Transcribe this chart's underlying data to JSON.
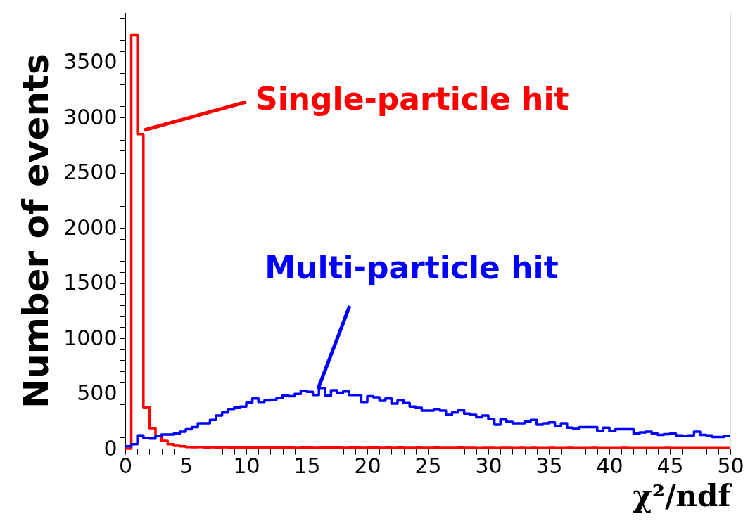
{
  "chart_data": {
    "type": "histogram",
    "bins": [
      0,
      0.5,
      1,
      1.5,
      2,
      2.5,
      3,
      3.5,
      4,
      4.5,
      5,
      5.5,
      6,
      6.5,
      7,
      7.5,
      8,
      8.5,
      9,
      9.5,
      10,
      10.5,
      11,
      11.5,
      12,
      12.5,
      13,
      13.5,
      14,
      14.5,
      15,
      15.5,
      16,
      16.5,
      17,
      17.5,
      18,
      18.5,
      19,
      19.5,
      20,
      20.5,
      21,
      21.5,
      22,
      22.5,
      23,
      23.5,
      24,
      24.5,
      25,
      25.5,
      26,
      26.5,
      27,
      27.5,
      28,
      28.5,
      29,
      29.5,
      30,
      30.5,
      31,
      31.5,
      32,
      32.5,
      33,
      33.5,
      34,
      34.5,
      35,
      35.5,
      36,
      36.5,
      37,
      37.5,
      38,
      38.5,
      39,
      39.5,
      40,
      40.5,
      41,
      41.5,
      42,
      42.5,
      43,
      43.5,
      44,
      44.5,
      45,
      45.5,
      46,
      46.5,
      47,
      47.5,
      48,
      48.5,
      49,
      49.5,
      50
    ],
    "series": [
      {
        "name": "Single-particle hit",
        "color": "#ff0000",
        "values": [
          0,
          3750,
          2850,
          375,
          185,
          115,
          70,
          40,
          25,
          20,
          15,
          12,
          15,
          10,
          12,
          10,
          12,
          10,
          8,
          10,
          10,
          8,
          10,
          8,
          8,
          10,
          8,
          8,
          6,
          8,
          8,
          6,
          8,
          8,
          10,
          8,
          6,
          8,
          8,
          6,
          8,
          8,
          6,
          8,
          6,
          8,
          6,
          6,
          8,
          6,
          6,
          8,
          6,
          6,
          6,
          8,
          6,
          6,
          5,
          6,
          6,
          5,
          6,
          6,
          5,
          6,
          5,
          6,
          5,
          5,
          6,
          5,
          5,
          6,
          5,
          5,
          5,
          6,
          5,
          5,
          5,
          5,
          6,
          5,
          5,
          5,
          5,
          5,
          5,
          6,
          5,
          5,
          5,
          5,
          5,
          5,
          5,
          5,
          5,
          5
        ]
      },
      {
        "name": "Multi-particle hit",
        "color": "#0000ff",
        "values": [
          20,
          40,
          120,
          95,
          90,
          115,
          128,
          128,
          135,
          153,
          175,
          195,
          230,
          230,
          260,
          300,
          327,
          358,
          373,
          380,
          416,
          454,
          422,
          437,
          443,
          458,
          481,
          475,
          496,
          524,
          514,
          486,
          549,
          479,
          528,
          507,
          518,
          486,
          486,
          422,
          475,
          465,
          433,
          454,
          408,
          437,
          412,
          380,
          369,
          344,
          344,
          358,
          344,
          306,
          327,
          348,
          317,
          306,
          284,
          300,
          267,
          217,
          263,
          242,
          230,
          230,
          246,
          260,
          217,
          229,
          238,
          204,
          229,
          189,
          178,
          195,
          195,
          195,
          161,
          189,
          157,
          175,
          175,
          175,
          135,
          146,
          153,
          135,
          125,
          131,
          135,
          120,
          115,
          120,
          153,
          125,
          120,
          105,
          105,
          115
        ]
      }
    ],
    "xlabel": "χ²/ndf",
    "ylabel": "Number of events",
    "xlim": [
      0,
      50
    ],
    "ylim": [
      0,
      3950
    ],
    "xticks": [
      0,
      {
        "value": 1,
        "label": null
      },
      {
        "value": 2,
        "label": null
      },
      {
        "value": 3,
        "label": null
      },
      {
        "value": 4,
        "label": null
      },
      5,
      {
        "value": 6,
        "label": null
      },
      {
        "value": 7,
        "label": null
      },
      {
        "value": 8,
        "label": null
      },
      {
        "value": 9,
        "label": null
      },
      10,
      {
        "value": 11,
        "label": null
      },
      {
        "value": 12,
        "label": null
      },
      {
        "value": 13,
        "label": null
      },
      {
        "value": 14,
        "label": null
      },
      15,
      {
        "value": 16,
        "label": null
      },
      {
        "value": 17,
        "label": null
      },
      {
        "value": 18,
        "label": null
      },
      {
        "value": 19,
        "label": null
      },
      20,
      {
        "value": 21,
        "label": null
      },
      {
        "value": 22,
        "label": null
      },
      {
        "value": 23,
        "label": null
      },
      {
        "value": 24,
        "label": null
      },
      25,
      {
        "value": 26,
        "label": null
      },
      {
        "value": 27,
        "label": null
      },
      {
        "value": 28,
        "label": null
      },
      {
        "value": 29,
        "label": null
      },
      30,
      {
        "value": 31,
        "label": null
      },
      {
        "value": 32,
        "label": null
      },
      {
        "value": 33,
        "label": null
      },
      {
        "value": 34,
        "label": null
      },
      35,
      {
        "value": 36,
        "label": null
      },
      {
        "value": 37,
        "label": null
      },
      {
        "value": 38,
        "label": null
      },
      {
        "value": 39,
        "label": null
      },
      40,
      {
        "value": 41,
        "label": null
      },
      {
        "value": 42,
        "label": null
      },
      {
        "value": 43,
        "label": null
      },
      {
        "value": 44,
        "label": null
      },
      45,
      {
        "value": 46,
        "label": null
      },
      {
        "value": 47,
        "label": null
      },
      {
        "value": 48,
        "label": null
      },
      {
        "value": 49,
        "label": null
      },
      50
    ],
    "yticks": [
      0,
      {
        "value": 100,
        "label": null
      },
      {
        "value": 200,
        "label": null
      },
      {
        "value": 300,
        "label": null
      },
      {
        "value": 400,
        "label": null
      },
      500,
      {
        "value": 600,
        "label": null
      },
      {
        "value": 700,
        "label": null
      },
      {
        "value": 800,
        "label": null
      },
      {
        "value": 900,
        "label": null
      },
      1000,
      {
        "value": 1100,
        "label": null
      },
      {
        "value": 1200,
        "label": null
      },
      {
        "value": 1300,
        "label": null
      },
      {
        "value": 1400,
        "label": null
      },
      1500,
      {
        "value": 1600,
        "label": null
      },
      {
        "value": 1700,
        "label": null
      },
      {
        "value": 1800,
        "label": null
      },
      {
        "value": 1900,
        "label": null
      },
      2000,
      {
        "value": 2100,
        "label": null
      },
      {
        "value": 2200,
        "label": null
      },
      {
        "value": 2300,
        "label": null
      },
      {
        "value": 2400,
        "label": null
      },
      2500,
      {
        "value": 2600,
        "label": null
      },
      {
        "value": 2700,
        "label": null
      },
      {
        "value": 2800,
        "label": null
      },
      {
        "value": 2900,
        "label": null
      },
      3000,
      {
        "value": 3100,
        "label": null
      },
      {
        "value": 3200,
        "label": null
      },
      {
        "value": 3300,
        "label": null
      },
      {
        "value": 3400,
        "label": null
      },
      3500,
      {
        "value": 3600,
        "label": null
      },
      {
        "value": 3700,
        "label": null
      },
      {
        "value": 3800,
        "label": null
      },
      {
        "value": 3900,
        "label": null
      }
    ]
  }
}
